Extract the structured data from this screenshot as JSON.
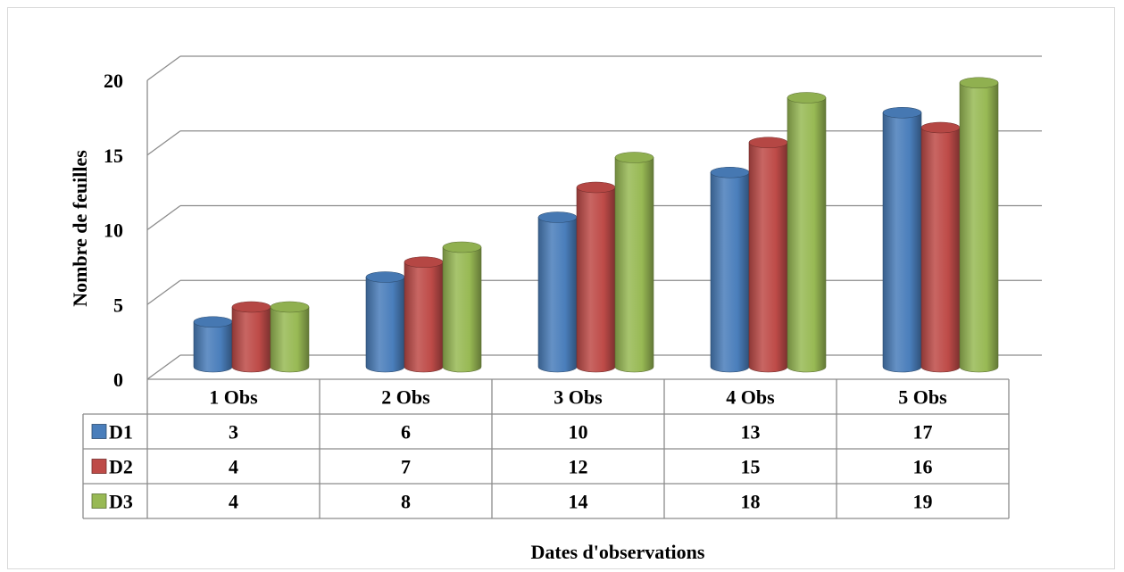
{
  "chart_data": {
    "type": "bar",
    "title": "",
    "xlabel": "Dates d'observations",
    "ylabel": "Nombre de feuilles",
    "categories": [
      "1 Obs",
      "2 Obs",
      "3 Obs",
      "4 Obs",
      "5 Obs"
    ],
    "series": [
      {
        "name": "D1",
        "values": [
          3,
          6,
          10,
          13,
          17
        ],
        "color": "#4a7ebb"
      },
      {
        "name": "D2",
        "values": [
          4,
          7,
          12,
          15,
          16
        ],
        "color": "#be4b48"
      },
      {
        "name": "D3",
        "values": [
          4,
          8,
          14,
          18,
          19
        ],
        "color": "#98b954"
      }
    ],
    "ylim": [
      0,
      20
    ],
    "yticks": [
      0,
      5,
      10,
      15,
      20
    ],
    "grid": true,
    "data_table": true,
    "style": "3d-cylinder"
  }
}
